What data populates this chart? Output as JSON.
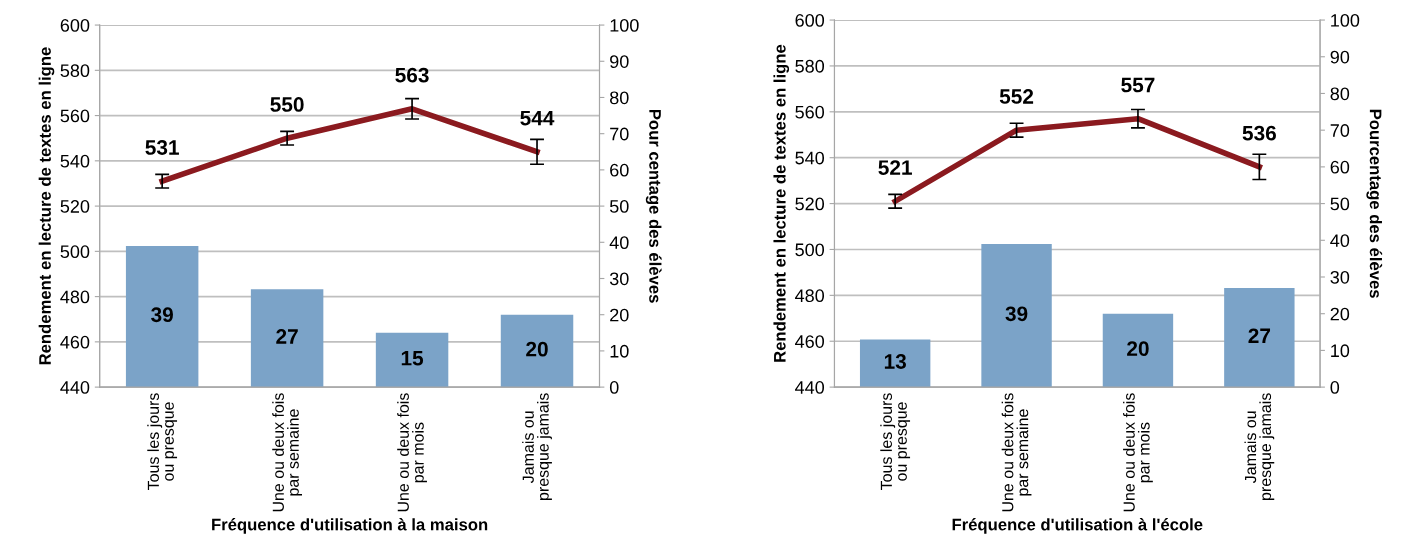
{
  "chart_data": [
    {
      "type": "bar",
      "categories": [
        "Tous les jours\nou presque",
        "Une ou deux fois\npar semaine",
        "Une ou deux fois\npar mois",
        "Jamais ou\npresque jamais"
      ],
      "xlabel": "Fréquence d'utilisation à la maison",
      "ylabel": "Rendement en lecture de textes en ligne",
      "y2label": "Pour centage des élèves",
      "ylim": [
        440,
        600
      ],
      "yticks": [
        440,
        460,
        480,
        500,
        520,
        540,
        560,
        580,
        600
      ],
      "y2lim": [
        0,
        100
      ],
      "y2ticks": [
        0,
        10,
        20,
        30,
        40,
        50,
        60,
        70,
        80,
        90,
        100
      ],
      "grid": "y",
      "data_labels": true,
      "series": [
        {
          "axis": "y2",
          "color": "#7ba3c8",
          "values": [
            39,
            27,
            15,
            20
          ]
        },
        {
          "type": "line",
          "axis": "y",
          "color": "#8b1a1f",
          "values": [
            531,
            550,
            563,
            544
          ],
          "errors": [
            3,
            3,
            4.5,
            5.5
          ]
        }
      ]
    },
    {
      "type": "bar",
      "categories": [
        "Tous les jours\nou presque",
        "Une ou deux fois\npar semaine",
        "Une ou deux fois\npar mois",
        "Jamais ou\npresque jamais"
      ],
      "xlabel": "Fréquence d'utilisation à l'école",
      "ylabel": "Rendement en lecture de textes en ligne",
      "y2label": "Pourcentage des élèves",
      "ylim": [
        440,
        600
      ],
      "yticks": [
        440,
        460,
        480,
        500,
        520,
        540,
        560,
        580,
        600
      ],
      "y2lim": [
        0,
        100
      ],
      "y2ticks": [
        0,
        10,
        20,
        30,
        40,
        50,
        60,
        70,
        80,
        90,
        100
      ],
      "grid": "y",
      "data_labels": true,
      "series": [
        {
          "axis": "y2",
          "color": "#7ba3c8",
          "values": [
            13,
            39,
            20,
            27
          ]
        },
        {
          "type": "line",
          "axis": "y",
          "color": "#8b1a1f",
          "values": [
            521,
            552,
            557,
            536
          ],
          "errors": [
            3,
            3,
            4,
            5.5
          ]
        }
      ]
    }
  ]
}
